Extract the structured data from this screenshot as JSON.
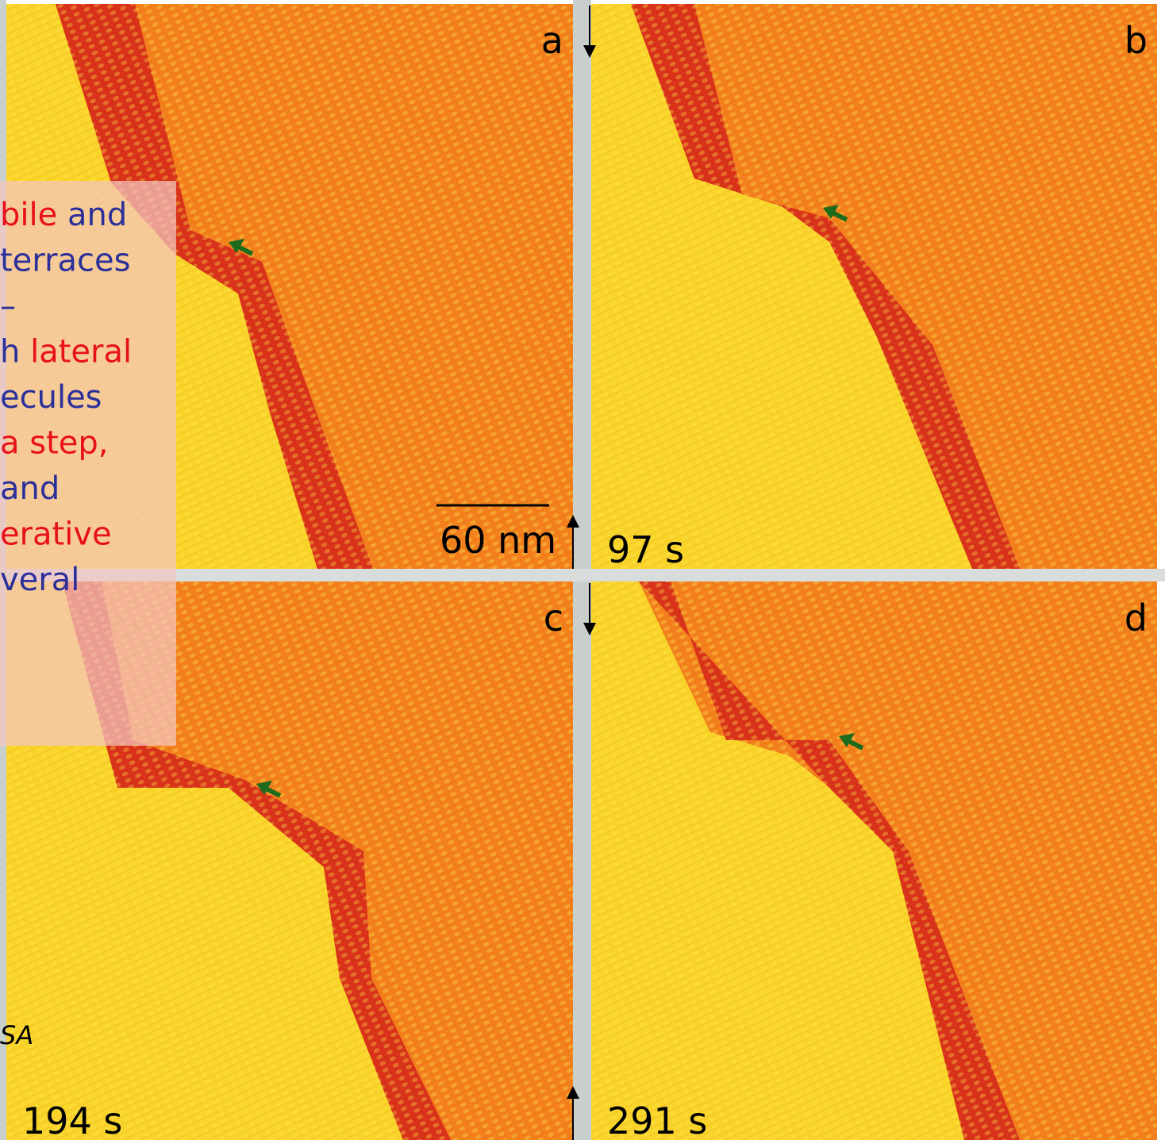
{
  "panels": [
    {
      "label": "a",
      "scale_bar": "60 nm"
    },
    {
      "label": "b",
      "time": "97 s"
    },
    {
      "label": "c",
      "time": "194 s"
    },
    {
      "label": "d",
      "time": "291 s"
    }
  ],
  "overlay": {
    "lines": [
      [
        {
          "text": "bile",
          "color": "#e8101a"
        },
        {
          "text": " and",
          "color": "#2a2f9a"
        }
      ],
      [
        {
          "text": "terraces",
          "color": "#2a2f9a"
        }
      ],
      [
        {
          "text": "–",
          "color": "#2a2f9a"
        }
      ],
      [
        {
          "text": "h",
          "color": "#2a2f9a"
        },
        {
          "text": " lateral",
          "color": "#e8101a"
        }
      ],
      [
        {
          "text": "ecules",
          "color": "#2a2f9a"
        }
      ],
      [
        {
          "text": "a step,",
          "color": "#e8101a"
        }
      ],
      [
        {
          "text": "and",
          "color": "#2a2f9a"
        }
      ],
      [
        {
          "text": "erative",
          "color": "#e8101a"
        }
      ],
      [
        {
          "text": "veral",
          "color": "#2a2f9a"
        }
      ]
    ],
    "footnote": "SA"
  }
}
